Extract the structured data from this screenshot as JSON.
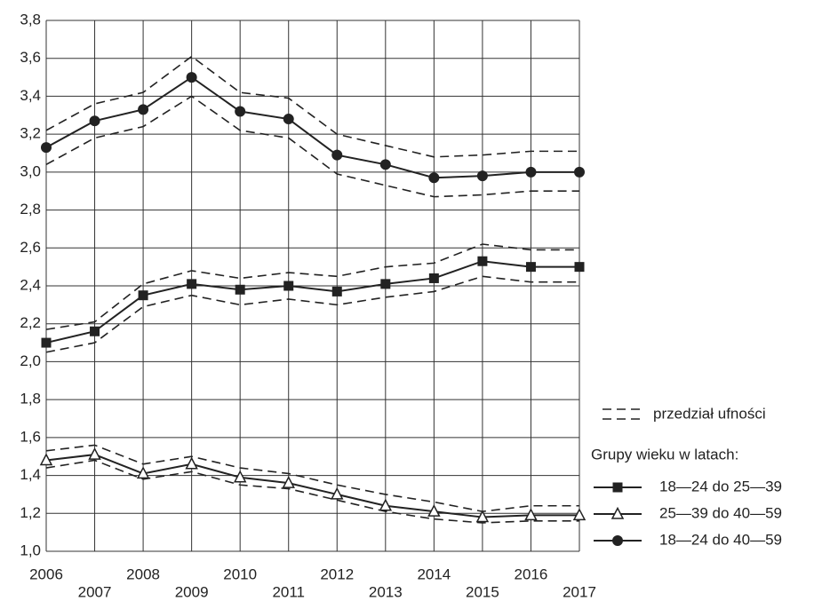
{
  "chart_data": {
    "type": "line",
    "x": [
      2006,
      2007,
      2008,
      2009,
      2010,
      2011,
      2012,
      2013,
      2014,
      2015,
      2016,
      2017
    ],
    "xlim": [
      2006,
      2017
    ],
    "xticks": [
      2006,
      2007,
      2008,
      2009,
      2010,
      2011,
      2012,
      2013,
      2014,
      2015,
      2016,
      2017
    ],
    "ylim": [
      1.0,
      3.8
    ],
    "yticks": [
      {
        "value": 1.0,
        "label": "1,0"
      },
      {
        "value": 1.2,
        "label": "1,2"
      },
      {
        "value": 1.4,
        "label": "1,4"
      },
      {
        "value": 1.6,
        "label": "1,6"
      },
      {
        "value": 1.8,
        "label": "1,8"
      },
      {
        "value": 2.0,
        "label": "2,0"
      },
      {
        "value": 2.2,
        "label": "2,2"
      },
      {
        "value": 2.4,
        "label": "2,4"
      },
      {
        "value": 2.6,
        "label": "2,6"
      },
      {
        "value": 2.8,
        "label": "2,8"
      },
      {
        "value": 3.0,
        "label": "3,0"
      },
      {
        "value": 3.2,
        "label": "3,2"
      },
      {
        "value": 3.4,
        "label": "3,4"
      },
      {
        "value": 3.6,
        "label": "3,6"
      },
      {
        "value": 3.8,
        "label": "3,8"
      }
    ],
    "grid": true,
    "ci_label": "przedział ufności",
    "legend_title": "Grupy wieku w latach:",
    "legend_position": "right",
    "series": [
      {
        "name": "18—24 do 25—39",
        "color": "#222222",
        "marker": "square",
        "values": [
          2.1,
          2.16,
          2.35,
          2.41,
          2.38,
          2.4,
          2.37,
          2.41,
          2.44,
          2.53,
          2.5,
          2.5
        ],
        "ci_upper": [
          2.17,
          2.21,
          2.41,
          2.48,
          2.44,
          2.47,
          2.45,
          2.5,
          2.52,
          2.62,
          2.59,
          2.59
        ],
        "ci_lower": [
          2.05,
          2.1,
          2.29,
          2.35,
          2.3,
          2.33,
          2.3,
          2.34,
          2.37,
          2.45,
          2.42,
          2.42
        ]
      },
      {
        "name": "25—39 do 40—59",
        "color": "#222222",
        "marker": "triangle",
        "values": [
          1.48,
          1.51,
          1.41,
          1.46,
          1.39,
          1.36,
          1.3,
          1.24,
          1.21,
          1.18,
          1.19,
          1.19
        ],
        "ci_upper": [
          1.53,
          1.56,
          1.46,
          1.5,
          1.44,
          1.41,
          1.35,
          1.3,
          1.26,
          1.21,
          1.24,
          1.24
        ],
        "ci_lower": [
          1.44,
          1.48,
          1.38,
          1.42,
          1.35,
          1.33,
          1.27,
          1.21,
          1.17,
          1.15,
          1.16,
          1.16
        ]
      },
      {
        "name": "18—24 do 40—59",
        "color": "#222222",
        "marker": "circle",
        "values": [
          3.13,
          3.27,
          3.33,
          3.5,
          3.32,
          3.28,
          3.09,
          3.04,
          2.97,
          2.98,
          3.0,
          3.0
        ],
        "ci_upper": [
          3.22,
          3.36,
          3.42,
          3.61,
          3.42,
          3.39,
          3.2,
          3.14,
          3.08,
          3.09,
          3.11,
          3.11
        ],
        "ci_lower": [
          3.04,
          3.18,
          3.24,
          3.4,
          3.22,
          3.18,
          2.99,
          2.93,
          2.87,
          2.88,
          2.9,
          2.9
        ]
      }
    ]
  }
}
